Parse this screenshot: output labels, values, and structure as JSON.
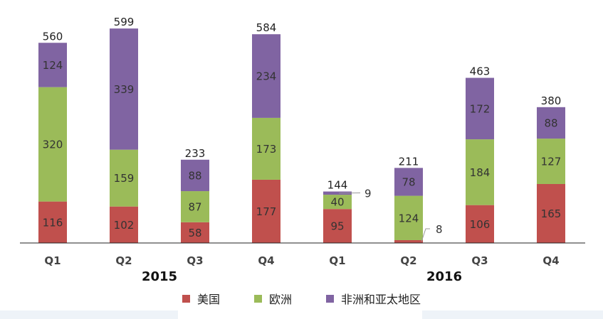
{
  "chart_data": {
    "type": "bar",
    "stacked": true,
    "categories": [
      "Q1",
      "Q2",
      "Q3",
      "Q4",
      "Q1",
      "Q2",
      "Q3",
      "Q4"
    ],
    "groups": [
      {
        "label": "2015",
        "from": 0,
        "to": 3
      },
      {
        "label": "2016",
        "from": 4,
        "to": 7
      }
    ],
    "series": [
      {
        "name": "美国",
        "color": "#c0504d",
        "values": [
          116,
          102,
          58,
          177,
          95,
          8,
          106,
          165
        ]
      },
      {
        "name": "欧洲",
        "color": "#9bbb59",
        "values": [
          320,
          159,
          87,
          173,
          40,
          124,
          184,
          127
        ]
      },
      {
        "name": "非洲和亚太地区",
        "color": "#8064a2",
        "values": [
          124,
          339,
          88,
          234,
          9,
          78,
          172,
          88
        ]
      }
    ],
    "totals": [
      560,
      599,
      233,
      584,
      144,
      211,
      463,
      380
    ],
    "ylim": [
      0,
      640
    ],
    "grid": false,
    "legend_position": "bottom"
  }
}
